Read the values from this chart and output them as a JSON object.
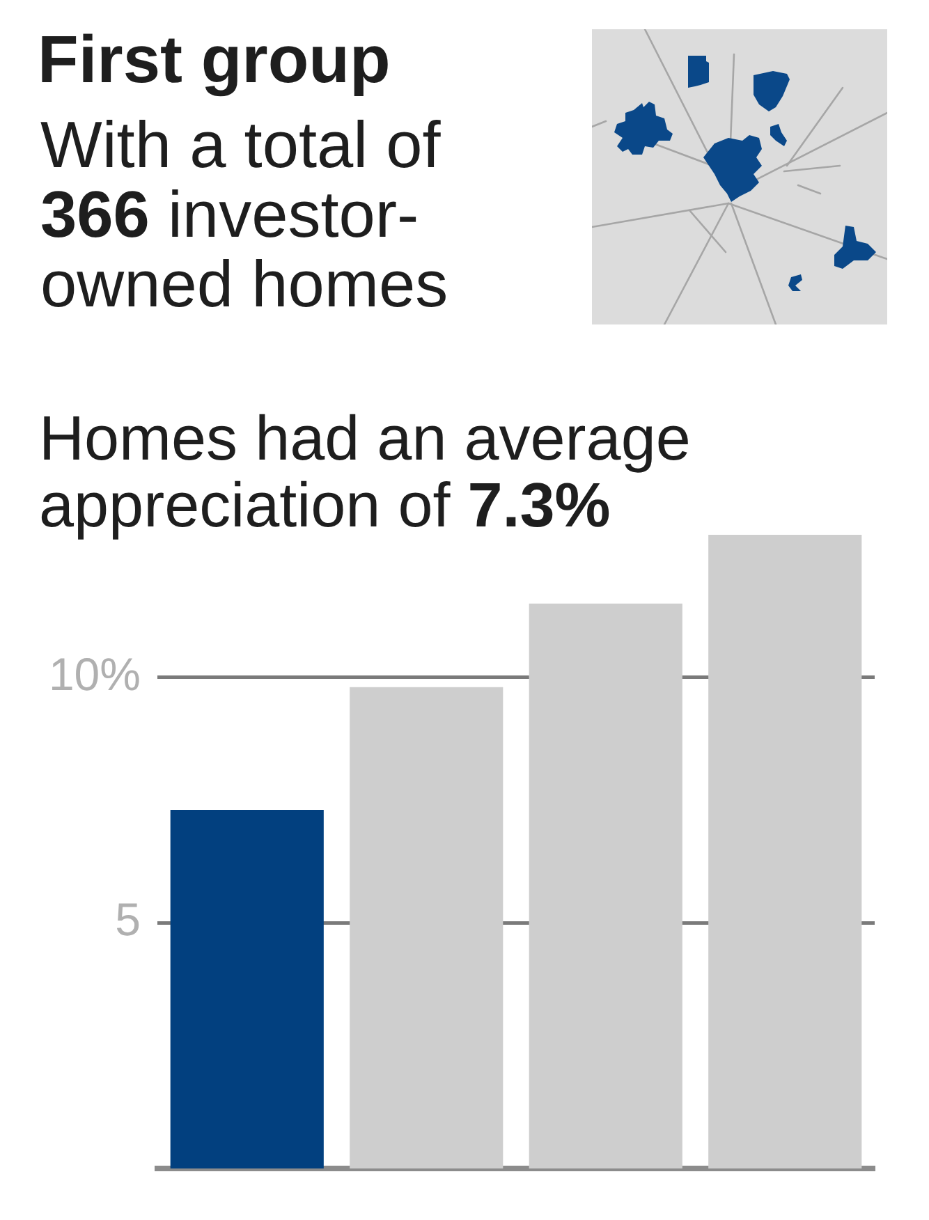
{
  "chart_data": {
    "type": "bar",
    "title": "First group",
    "subtitle": "With a total of 366 investor-owned homes",
    "annotations": [
      "Homes had an average appreciation of 7.3%"
    ],
    "categories": [
      null,
      null,
      null,
      null
    ],
    "values": [
      7.3,
      9.8,
      11.5,
      12.9
    ],
    "colors": [
      "#02407f",
      "#cecece",
      "#cecece",
      "#cecece"
    ],
    "ylim": [
      0,
      12.9
    ],
    "yticks": [
      5,
      {
        "value": 10,
        "label": "10%"
      }
    ],
    "grid": "y"
  }
}
